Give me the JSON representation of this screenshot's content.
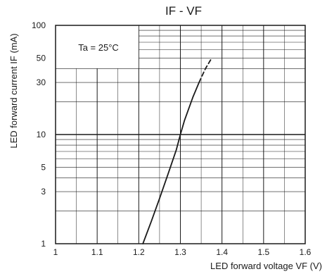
{
  "chart_data": {
    "type": "line",
    "title_main": "IF - VF",
    "title": "IF - VF",
    "xlabel": "LED forward voltage VF (V)",
    "ylabel": "LED forward current IF (mA)",
    "xlim": [
      1.0,
      1.6
    ],
    "ylim": [
      1,
      100
    ],
    "y_scale": "log",
    "grid": true,
    "x_ticks": [
      "1",
      "1.1",
      "1.2",
      "1.3",
      "1.4",
      "1.5",
      "1.6"
    ],
    "y_ticks": [
      "1",
      "3",
      "5",
      "10",
      "30",
      "50",
      "100"
    ],
    "annotation": "Ta = 25°C",
    "series": [
      {
        "style": "solid",
        "x": [
          1.21,
          1.23,
          1.25,
          1.27,
          1.29,
          1.3,
          1.31,
          1.33,
          1.345
        ],
        "y": [
          1.0,
          1.6,
          2.6,
          4.3,
          7.2,
          10,
          13.5,
          22,
          30
        ]
      },
      {
        "style": "dashed",
        "x": [
          1.345,
          1.36,
          1.375
        ],
        "y": [
          30,
          40,
          50
        ]
      }
    ]
  }
}
